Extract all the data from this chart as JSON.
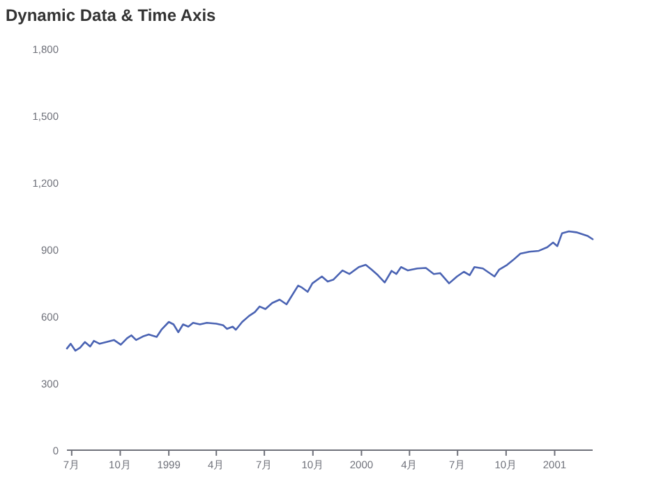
{
  "chart_data": {
    "type": "line",
    "title": "Dynamic Data & Time Axis",
    "xlim": [
      "1998-06-22",
      "2001-03-14"
    ],
    "xticks": [
      {
        "value": "1998-07",
        "label": "7月"
      },
      {
        "value": "1998-10",
        "label": "10月"
      },
      {
        "value": "1999-01",
        "label": "1999"
      },
      {
        "value": "1999-04",
        "label": "4月"
      },
      {
        "value": "1999-07",
        "label": "7月"
      },
      {
        "value": "1999-10",
        "label": "10月"
      },
      {
        "value": "2000-01",
        "label": "2000"
      },
      {
        "value": "2000-04",
        "label": "4月"
      },
      {
        "value": "2000-07",
        "label": "7月"
      },
      {
        "value": "2000-10",
        "label": "10月"
      },
      {
        "value": "2001-01",
        "label": "2001"
      }
    ],
    "ylim": [
      0,
      1800
    ],
    "yticks": [
      0,
      300,
      600,
      900,
      {
        "value": 1200,
        "label": "1,200"
      },
      {
        "value": 1500,
        "label": "1,500"
      },
      {
        "value": 1800,
        "label": "1,800"
      }
    ],
    "grid": false,
    "marker": "none",
    "line_style": "solid",
    "series": [
      {
        "color": "#4a63b3",
        "x": [
          "1998-06-22",
          "1998-06-29",
          "1998-07-08",
          "1998-07-17",
          "1998-07-26",
          "1998-08-05",
          "1998-08-12",
          "1998-08-23",
          "1998-09-05",
          "1998-09-19",
          "1998-10-02",
          "1998-10-14",
          "1998-10-22",
          "1998-10-31",
          "1998-11-13",
          "1998-11-24",
          "1998-12-09",
          "1998-12-18",
          "1999-01-01",
          "1999-01-10",
          "1999-01-19",
          "1999-01-28",
          "1999-02-07",
          "1999-02-16",
          "1999-03-01",
          "1999-03-14",
          "1999-04-01",
          "1999-04-14",
          "1999-04-21",
          "1999-05-02",
          "1999-05-08",
          "1999-05-20",
          "1999-06-02",
          "1999-06-13",
          "1999-06-22",
          "1999-07-03",
          "1999-07-16",
          "1999-07-30",
          "1999-08-12",
          "1999-08-23",
          "1999-09-03",
          "1999-09-09",
          "1999-09-21",
          "1999-09-30",
          "1999-10-18",
          "1999-10-29",
          "1999-11-09",
          "1999-11-26",
          "1999-12-09",
          "1999-12-27",
          "2000-01-09",
          "2000-01-20",
          "2000-02-01",
          "2000-02-14",
          "2000-02-27",
          "2000-03-07",
          "2000-03-16",
          "2000-03-29",
          "2000-04-16",
          "2000-05-02",
          "2000-05-17",
          "2000-05-29",
          "2000-06-15",
          "2000-06-30",
          "2000-07-13",
          "2000-07-24",
          "2000-08-02",
          "2000-08-18",
          "2000-08-27",
          "2000-09-09",
          "2000-09-18",
          "2000-10-03",
          "2000-10-14",
          "2000-10-28",
          "2000-11-14",
          "2000-12-02",
          "2000-12-18",
          "2000-12-29",
          "2001-01-06",
          "2001-01-15",
          "2001-01-28",
          "2001-02-11",
          "2001-02-24",
          "2001-03-05",
          "2001-03-14"
        ],
        "values": [
          456,
          477,
          446,
          460,
          485,
          465,
          490,
          477,
          485,
          494,
          473,
          502,
          515,
          494,
          510,
          519,
          508,
          540,
          575,
          564,
          529,
          564,
          554,
          571,
          564,
          571,
          567,
          560,
          544,
          554,
          540,
          575,
          602,
          619,
          644,
          633,
          660,
          675,
          654,
          696,
          738,
          731,
          710,
          748,
          779,
          756,
          765,
          806,
          790,
          821,
          831,
          810,
          785,
          752,
          804,
          790,
          821,
          806,
          815,
          817,
          790,
          794,
          748,
          779,
          800,
          785,
          821,
          815,
          800,
          779,
          810,
          831,
          852,
          881,
          890,
          894,
          910,
          931,
          915,
          973,
          981,
          977,
          967,
          960,
          946
        ]
      }
    ]
  }
}
